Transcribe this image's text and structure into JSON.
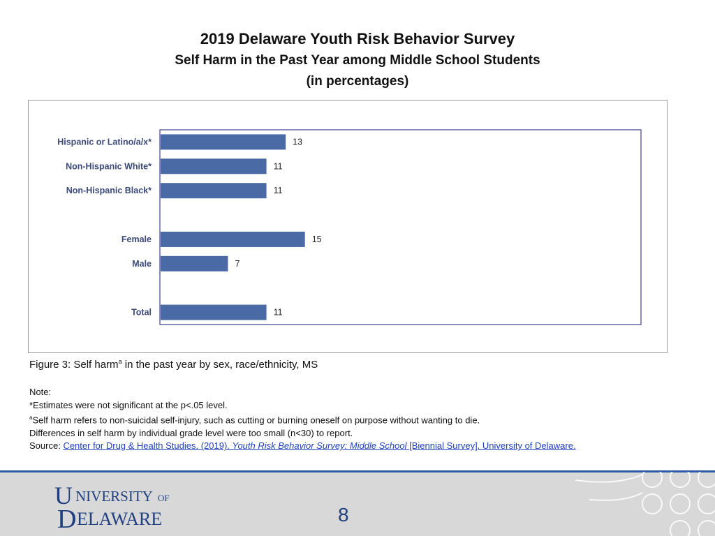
{
  "title": {
    "line1": "2019 Delaware Youth Risk Behavior Survey",
    "line2": "Self Harm in the Past Year among Middle School Students",
    "line3": "(in percentages)"
  },
  "chart_data": {
    "type": "bar",
    "orientation": "horizontal",
    "categories": [
      "Hispanic or Latino/a/x*",
      "Non-Hispanic White*",
      "Non-Hispanic Black*",
      "",
      "Female",
      "Male",
      "",
      "Total"
    ],
    "values": [
      13,
      11,
      11,
      null,
      15,
      7,
      null,
      11
    ],
    "data_labels": [
      "13",
      "11",
      "11",
      "",
      "15",
      "7",
      "",
      "11"
    ],
    "bar_color": "#4a6aa5",
    "xlim": [
      0,
      50
    ],
    "grid": false,
    "legend": "none"
  },
  "caption": {
    "prefix": "Figure 3: Self harm",
    "sup": "a",
    "suffix": " in the past year by sex, race/ethnicity, MS"
  },
  "notes": {
    "heading": "Note:",
    "line1": "*Estimates were not significant at the p<.05 level.",
    "line2_sup": "a",
    "line2": "Self harm refers to non-suicidal self-injury, such as cutting or burning oneself on purpose without wanting to die.",
    "line3": "Differences in self harm by individual grade level were too small (n<30) to report.",
    "source_label": "Source:",
    "source_part1": "Center for Drug & Health Studies. (2019). ",
    "source_italic": "Youth Risk Behavior Survey: Middle School",
    "source_part2": " [Biennial Survey]. University of Delaware."
  },
  "footer": {
    "logo_text": "UNIVERSITY OF DELAWARE",
    "logo_letters": [
      "U",
      "D",
      "NIVERSITY",
      "OF",
      "ELAWARE"
    ],
    "page_number": "8"
  }
}
